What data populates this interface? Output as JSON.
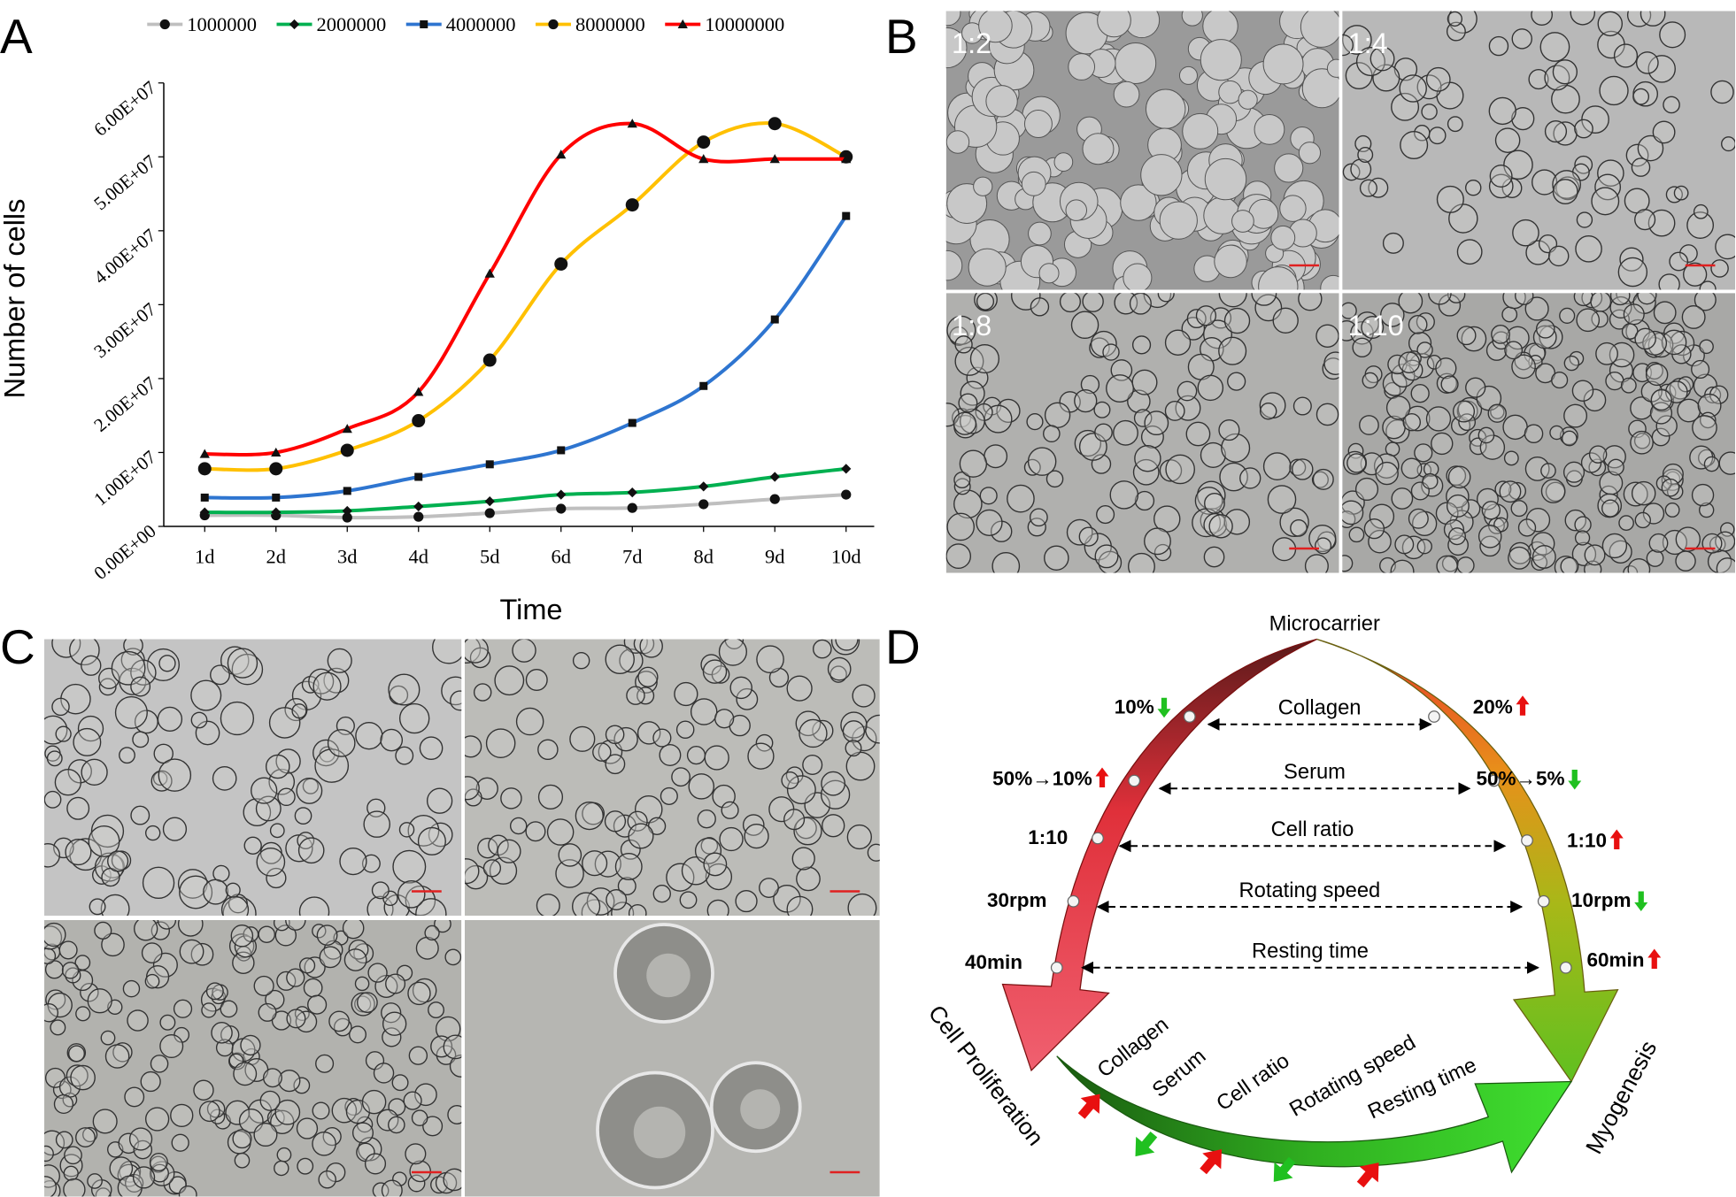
{
  "panel_labels": [
    "A",
    "B",
    "C",
    "D"
  ],
  "chart_data": {
    "type": "line",
    "legend": "top",
    "grid": false,
    "x_title": "Time",
    "y_title": "Number of cells",
    "categories": [
      "1d",
      "2d",
      "3d",
      "4d",
      "5d",
      "6d",
      "7d",
      "8d",
      "9d",
      "10d"
    ],
    "series": [
      {
        "name": "1000000",
        "color": "#bfbfbf",
        "marker": "circle",
        "values": [
          1500000,
          1500000,
          1200000,
          1300000,
          1800000,
          2400000,
          2500000,
          3000000,
          3700000,
          4300000
        ]
      },
      {
        "name": "2000000",
        "color": "#00b050",
        "marker": "diamond",
        "values": [
          1900000,
          1900000,
          2100000,
          2700000,
          3400000,
          4300000,
          4600000,
          5400000,
          6700000,
          7800000
        ]
      },
      {
        "name": "4000000",
        "color": "#2e75d0",
        "marker": "square",
        "values": [
          3900000,
          3900000,
          4800000,
          6700000,
          8400000,
          10300000,
          14000000,
          19000000,
          28000000,
          42000000
        ]
      },
      {
        "name": "8000000",
        "color": "#ffc000",
        "marker": "circle",
        "values": [
          7800000,
          7800000,
          10300000,
          14300000,
          22500000,
          35500000,
          43500000,
          52000000,
          54500000,
          50000000
        ]
      },
      {
        "name": "10000000",
        "color": "#ff0000",
        "marker": "triangle",
        "values": [
          9800000,
          10000000,
          13200000,
          18200000,
          34200000,
          50300000,
          54500000,
          49700000,
          49700000,
          49700000
        ]
      }
    ],
    "ylim": [
      0,
      60000000
    ],
    "yticks": [
      {
        "value": 0,
        "label": "0.00E+00"
      },
      {
        "value": 10000000,
        "label": "1.00E+07"
      },
      {
        "value": 20000000,
        "label": "2.00E+07"
      },
      {
        "value": 30000000,
        "label": "3.00E+07"
      },
      {
        "value": 40000000,
        "label": "4.00E+07"
      },
      {
        "value": 50000000,
        "label": "5.00E+07"
      },
      {
        "value": 60000000,
        "label": "6.00E+07"
      }
    ]
  },
  "micrograph_labels": [
    "1:2",
    "1:4",
    "1:8",
    "1:10"
  ],
  "diagram": {
    "top": "Microcarrier",
    "left_end": "Cell Proliferation",
    "right_end": "Myogenesis",
    "rows": [
      {
        "factor": "Collagen",
        "left": "10%",
        "right": "20%"
      },
      {
        "factor": "Serum",
        "left": "50%→10%",
        "right": "50%→5%"
      },
      {
        "factor": "Cell ratio",
        "left": "1:10",
        "right": "1:10"
      },
      {
        "factor": "Rotating speed",
        "left": "30rpm",
        "right": "10rpm"
      },
      {
        "factor": "Resting time",
        "left": "40min",
        "right": "60min"
      }
    ],
    "bottom": [
      "Collagen",
      "Serum",
      "Cell ratio",
      "Rotating speed",
      "Resting time"
    ]
  }
}
